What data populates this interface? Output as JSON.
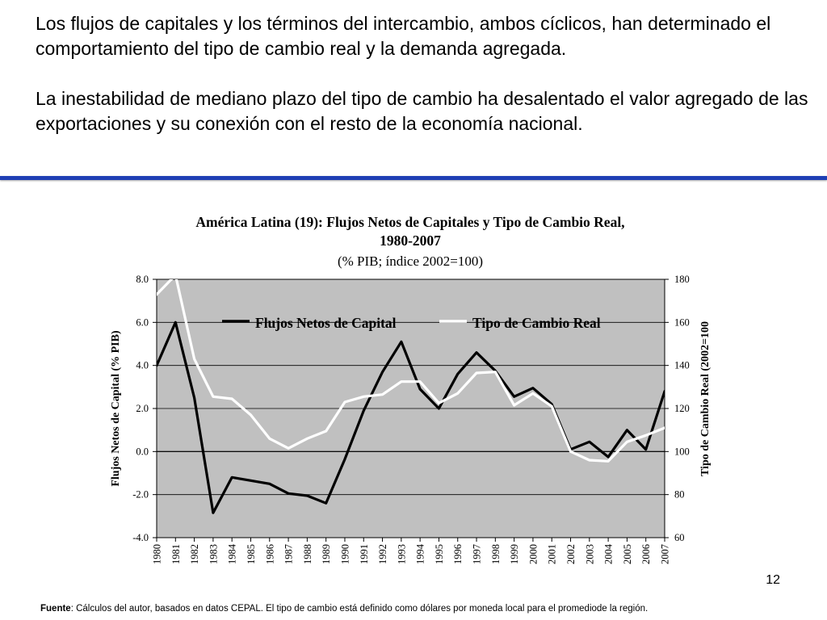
{
  "slide": {
    "paragraph_1": "Los flujos de capitales y los términos del intercambio, ambos cíclicos,  han determinado el comportamiento del tipo de cambio real y la demanda agregada.",
    "paragraph_2": "La inestabilidad de mediano plazo del tipo de cambio ha desalentado el valor agregado de las exportaciones y su conexión con el resto de la economía nacional.",
    "page_number": "12",
    "source_label": "Fuente",
    "source_text": ": Cálculos del autor, basados en datos CEPAL. El tipo de cambio está definido como dólares por moneda local para el promediode la región."
  },
  "chart_data": {
    "type": "line",
    "title": "América Latina (19): Flujos Netos de Capitales y Tipo de Cambio Real,",
    "title_line2": "1980-2007",
    "subtitle": "(% PIB; índice 2002=100)",
    "ylabel": "Flujos Netos de Capital (% PIB)",
    "y2label": "Tipo de Cambio Real (2002=100",
    "x": [
      "1980",
      "1981",
      "1982",
      "1983",
      "1984",
      "1985",
      "1986",
      "1987",
      "1988",
      "1989",
      "1990",
      "1991",
      "1992",
      "1993",
      "1994",
      "1995",
      "1996",
      "1997",
      "1998",
      "1999",
      "2000",
      "2001",
      "2002",
      "2003",
      "2004",
      "2005",
      "2006",
      "2007"
    ],
    "ylim": [
      -4,
      8
    ],
    "y_ticks": [
      -4,
      -2,
      0,
      2,
      4,
      6,
      8
    ],
    "y_tick_labels": [
      "-4.0",
      "-2.0",
      "0.0",
      "2.0",
      "4.0",
      "6.0",
      "8.0"
    ],
    "y2lim": [
      60,
      180
    ],
    "y2_ticks": [
      60,
      80,
      100,
      120,
      140,
      160,
      180
    ],
    "y2_tick_labels": [
      "60",
      "80",
      "100",
      "120",
      "140",
      "160",
      "180"
    ],
    "grid": true,
    "legend_position": "top",
    "plot_background": "#c0c0c0",
    "series": [
      {
        "name": "Flujos Netos de Capital",
        "axis": "left",
        "color": "#000000",
        "values": [
          4.0,
          6.0,
          2.5,
          -2.85,
          -1.2,
          -1.35,
          -1.5,
          -1.95,
          -2.05,
          -2.4,
          -0.35,
          1.9,
          3.7,
          5.1,
          2.9,
          2.0,
          3.6,
          4.6,
          3.75,
          2.55,
          2.95,
          2.2,
          0.1,
          0.45,
          -0.25,
          1.0,
          0.1,
          2.8
        ]
      },
      {
        "name": "Tipo de Cambio Real",
        "axis": "right",
        "color": "#ffffff",
        "values": [
          173,
          182,
          143,
          125.5,
          124.5,
          117,
          106,
          101.5,
          106,
          109.5,
          123,
          125.5,
          126.5,
          132.5,
          132.5,
          122.5,
          127,
          136.5,
          137,
          121.5,
          127,
          121,
          100,
          96,
          95.5,
          104.5,
          107.5,
          111
        ]
      }
    ]
  }
}
